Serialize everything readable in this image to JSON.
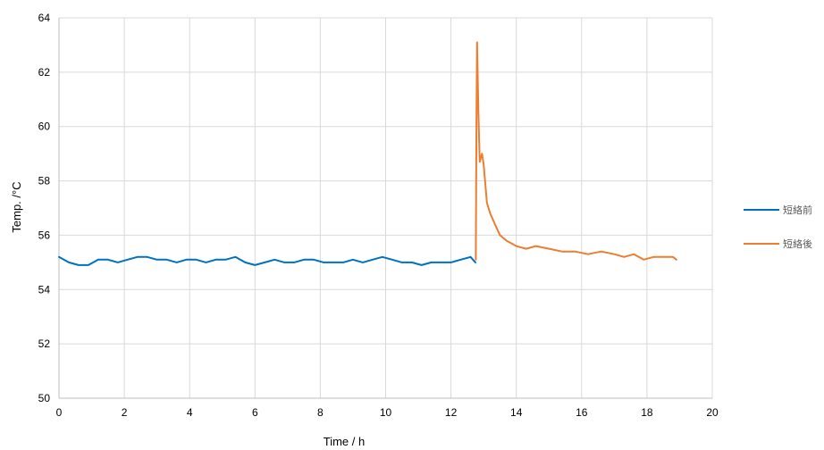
{
  "chart_data": {
    "type": "line",
    "title": "",
    "xlabel": "Time / h",
    "ylabel": "Temp. /°C",
    "xlim": [
      0,
      20
    ],
    "ylim": [
      50,
      64
    ],
    "x_ticks": [
      "0",
      "2",
      "4",
      "6",
      "8",
      "10",
      "12",
      "14",
      "16",
      "18",
      "20"
    ],
    "y_ticks": [
      "50",
      "52",
      "54",
      "56",
      "58",
      "60",
      "62",
      "64"
    ],
    "grid": true,
    "legend_position": "right",
    "series": [
      {
        "name": "短絡前",
        "color": "#0070C0",
        "points": [
          [
            0.0,
            55.2
          ],
          [
            0.3,
            55.0
          ],
          [
            0.6,
            54.9
          ],
          [
            0.9,
            54.9
          ],
          [
            1.2,
            55.1
          ],
          [
            1.5,
            55.1
          ],
          [
            1.8,
            55.0
          ],
          [
            2.1,
            55.1
          ],
          [
            2.4,
            55.2
          ],
          [
            2.7,
            55.2
          ],
          [
            3.0,
            55.1
          ],
          [
            3.3,
            55.1
          ],
          [
            3.6,
            55.0
          ],
          [
            3.9,
            55.1
          ],
          [
            4.2,
            55.1
          ],
          [
            4.5,
            55.0
          ],
          [
            4.8,
            55.1
          ],
          [
            5.1,
            55.1
          ],
          [
            5.4,
            55.2
          ],
          [
            5.7,
            55.0
          ],
          [
            6.0,
            54.9
          ],
          [
            6.3,
            55.0
          ],
          [
            6.6,
            55.1
          ],
          [
            6.9,
            55.0
          ],
          [
            7.2,
            55.0
          ],
          [
            7.5,
            55.1
          ],
          [
            7.8,
            55.1
          ],
          [
            8.1,
            55.0
          ],
          [
            8.4,
            55.0
          ],
          [
            8.7,
            55.0
          ],
          [
            9.0,
            55.1
          ],
          [
            9.3,
            55.0
          ],
          [
            9.6,
            55.1
          ],
          [
            9.9,
            55.2
          ],
          [
            10.2,
            55.1
          ],
          [
            10.5,
            55.0
          ],
          [
            10.8,
            55.0
          ],
          [
            11.1,
            54.9
          ],
          [
            11.4,
            55.0
          ],
          [
            11.7,
            55.0
          ],
          [
            12.0,
            55.0
          ],
          [
            12.3,
            55.1
          ],
          [
            12.6,
            55.2
          ],
          [
            12.75,
            55.0
          ]
        ]
      },
      {
        "name": "短絡後",
        "color": "#ED7D31",
        "points": [
          [
            12.76,
            55.1
          ],
          [
            12.78,
            60.0
          ],
          [
            12.8,
            63.1
          ],
          [
            12.84,
            60.5
          ],
          [
            12.88,
            58.7
          ],
          [
            12.95,
            59.0
          ],
          [
            13.0,
            58.6
          ],
          [
            13.1,
            57.2
          ],
          [
            13.2,
            56.8
          ],
          [
            13.35,
            56.4
          ],
          [
            13.5,
            56.0
          ],
          [
            13.7,
            55.8
          ],
          [
            14.0,
            55.6
          ],
          [
            14.3,
            55.5
          ],
          [
            14.6,
            55.6
          ],
          [
            15.0,
            55.5
          ],
          [
            15.4,
            55.4
          ],
          [
            15.8,
            55.4
          ],
          [
            16.2,
            55.3
          ],
          [
            16.6,
            55.4
          ],
          [
            17.0,
            55.3
          ],
          [
            17.3,
            55.2
          ],
          [
            17.6,
            55.3
          ],
          [
            17.9,
            55.1
          ],
          [
            18.2,
            55.2
          ],
          [
            18.5,
            55.2
          ],
          [
            18.8,
            55.2
          ],
          [
            18.9,
            55.1
          ]
        ]
      }
    ]
  }
}
